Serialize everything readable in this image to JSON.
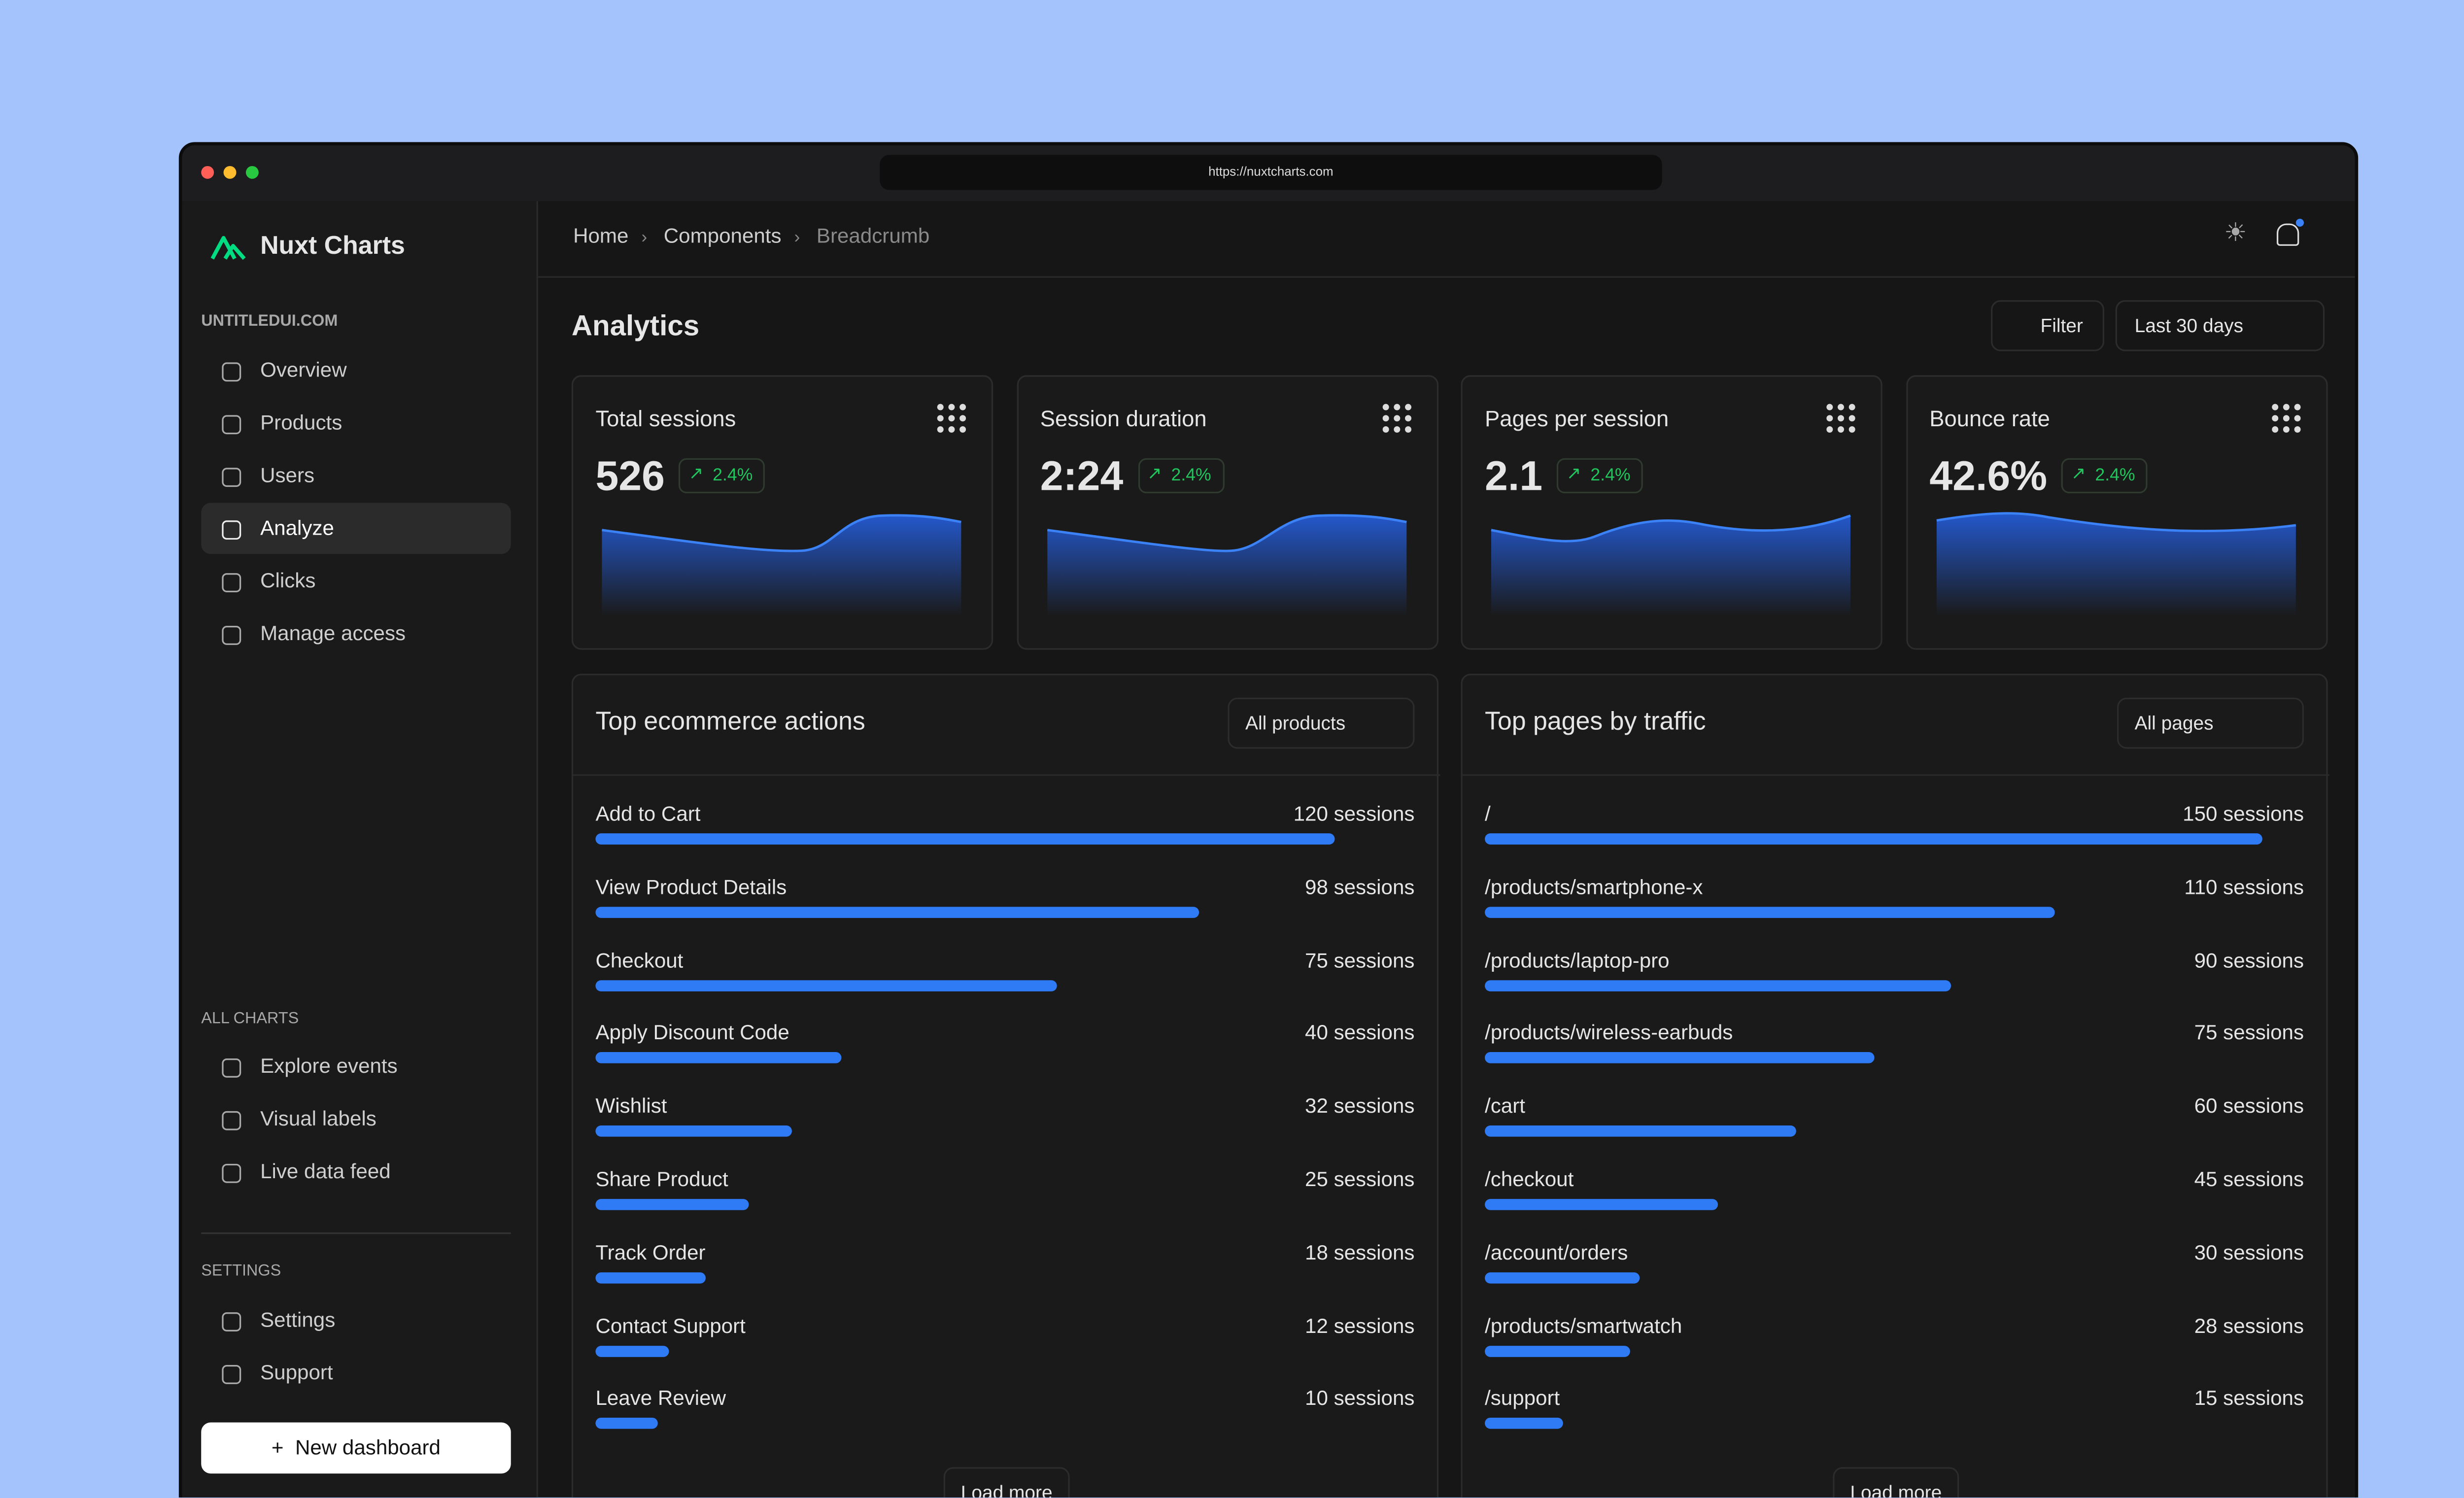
{
  "browser": {
    "url": "https://nuxtcharts.com"
  },
  "sidebar": {
    "brand": "Nuxt Charts",
    "workspace": "UNTITLEDUI.COM",
    "nav": [
      "Overview",
      "Products",
      "Users",
      "Analyze",
      "Clicks",
      "Manage access"
    ],
    "all_charts_heading": "ALL CHARTS",
    "all_charts": [
      "Explore events",
      "Visual labels",
      "Live data feed"
    ],
    "settings_heading": "SETTINGS",
    "settings": [
      "Settings",
      "Support"
    ],
    "new_dashboard": "New dashboard"
  },
  "breadcrumb": [
    "Home",
    "Components",
    "Breadcrumb"
  ],
  "header": {
    "title": "Analytics",
    "filter": "Filter",
    "range": "Last 30 days"
  },
  "kpis": [
    {
      "label": "Total sessions",
      "value": "526",
      "change": "2.4%"
    },
    {
      "label": "Session duration",
      "value": "2:24",
      "change": "2.4%"
    },
    {
      "label": "Pages per session",
      "value": "2.1",
      "change": "2.4%"
    },
    {
      "label": "Bounce rate",
      "value": "42.6%",
      "change": "2.4%"
    }
  ],
  "panels": [
    {
      "title": "Top ecommerce actions",
      "select": "All products",
      "xlim": [
        0,
        133
      ],
      "load_more": "Load more",
      "items": [
        {
          "label": "Add to Cart",
          "value": 120,
          "value_label": "120 sessions"
        },
        {
          "label": "View Product Details",
          "value": 98,
          "value_label": "98 sessions"
        },
        {
          "label": "Checkout",
          "value": 75,
          "value_label": "75 sessions"
        },
        {
          "label": "Apply Discount Code",
          "value": 40,
          "value_label": "40 sessions"
        },
        {
          "label": "Wishlist",
          "value": 32,
          "value_label": "32 sessions"
        },
        {
          "label": "Share Product",
          "value": 25,
          "value_label": "25 sessions"
        },
        {
          "label": "Track Order",
          "value": 18,
          "value_label": "18 sessions"
        },
        {
          "label": "Contact Support",
          "value": 12,
          "value_label": "12 sessions"
        },
        {
          "label": "Leave Review",
          "value": 10,
          "value_label": "10 sessions"
        }
      ]
    },
    {
      "title": "Top pages by traffic",
      "select": "All pages",
      "xlim": [
        0,
        158
      ],
      "load_more": "Load more",
      "items": [
        {
          "label": "/",
          "value": 150,
          "value_label": "150 sessions"
        },
        {
          "label": "/products/smartphone-x",
          "value": 110,
          "value_label": "110 sessions"
        },
        {
          "label": "/products/laptop-pro",
          "value": 90,
          "value_label": "90 sessions"
        },
        {
          "label": "/products/wireless-earbuds",
          "value": 75,
          "value_label": "75 sessions"
        },
        {
          "label": "/cart",
          "value": 60,
          "value_label": "60 sessions"
        },
        {
          "label": "/checkout",
          "value": 45,
          "value_label": "45 sessions"
        },
        {
          "label": "/account/orders",
          "value": 30,
          "value_label": "30 sessions"
        },
        {
          "label": "/products/smartwatch",
          "value": 28,
          "value_label": "28 sessions"
        },
        {
          "label": "/support",
          "value": 15,
          "value_label": "15 sessions"
        }
      ]
    }
  ]
}
